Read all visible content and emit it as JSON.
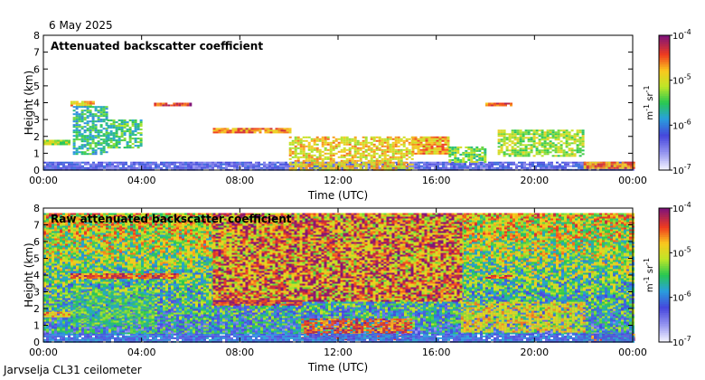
{
  "date": "6 May 2025",
  "footer": "Jarvselja CL31 ceilometer",
  "colorbar": {
    "tick_labels": [
      "10",
      "10",
      "10",
      "10"
    ],
    "tick_exponents": [
      "-4",
      "-5",
      "-6",
      "-7"
    ],
    "unit_parts": [
      "m",
      "-1",
      " sr",
      "-1"
    ]
  },
  "chart_data": [
    {
      "type": "heatmap",
      "title": "Attenuated backscatter coefficient",
      "xlabel": "Time (UTC)",
      "ylabel": "Height (km)",
      "x_ticks": [
        "00:00",
        "04:00",
        "08:00",
        "12:00",
        "16:00",
        "20:00",
        "00:00"
      ],
      "y_ticks": [
        "0",
        "1",
        "2",
        "3",
        "4",
        "5",
        "6",
        "7",
        "8"
      ],
      "xlim": [
        0,
        24
      ],
      "ylim": [
        0,
        8
      ],
      "color_scale": "log",
      "color_range": [
        1e-07,
        0.0001
      ],
      "features": [
        {
          "kind": "surface",
          "t0": 0,
          "t1": 24,
          "h0": 0,
          "h1": 0.5,
          "level": 0.12
        },
        {
          "kind": "layer",
          "t0": 0,
          "t1": 1.0,
          "h0": 1.5,
          "h1": 1.8,
          "level": 0.6
        },
        {
          "kind": "layer",
          "t0": 1.1,
          "t1": 2.0,
          "h0": 3.8,
          "h1": 4.1,
          "level": 0.72
        },
        {
          "kind": "plume",
          "t0": 1.2,
          "t1": 2.6,
          "h0": 1.0,
          "h1": 3.8,
          "level": 0.45
        },
        {
          "kind": "plume",
          "t0": 2.6,
          "t1": 4.0,
          "h0": 1.3,
          "h1": 3.0,
          "level": 0.5
        },
        {
          "kind": "layer",
          "t0": 4.5,
          "t1": 6.0,
          "h0": 3.8,
          "h1": 4.0,
          "level": 0.9
        },
        {
          "kind": "layer",
          "t0": 6.9,
          "t1": 10.0,
          "h0": 2.2,
          "h1": 2.5,
          "level": 0.8
        },
        {
          "kind": "cloud",
          "t0": 10.0,
          "t1": 15.0,
          "h0": 0.0,
          "h1": 2.0,
          "level": 0.7
        },
        {
          "kind": "layer",
          "t0": 15.0,
          "t1": 16.5,
          "h0": 1.0,
          "h1": 2.0,
          "level": 0.75
        },
        {
          "kind": "cloud",
          "t0": 16.5,
          "t1": 18.0,
          "h0": 0.5,
          "h1": 1.4,
          "level": 0.55
        },
        {
          "kind": "layer",
          "t0": 18.0,
          "t1": 19.0,
          "h0": 3.8,
          "h1": 4.0,
          "level": 0.85
        },
        {
          "kind": "cloud",
          "t0": 18.5,
          "t1": 22.0,
          "h0": 0.8,
          "h1": 2.4,
          "level": 0.6
        },
        {
          "kind": "layer",
          "t0": 22.0,
          "t1": 24.0,
          "h0": 0.1,
          "h1": 0.5,
          "level": 0.8
        }
      ]
    },
    {
      "type": "heatmap",
      "title": "Raw attenuated backscatter coefficient",
      "xlabel": "Time (UTC)",
      "ylabel": "Height (km)",
      "x_ticks": [
        "00:00",
        "04:00",
        "08:00",
        "12:00",
        "16:00",
        "20:00",
        "00:00"
      ],
      "y_ticks": [
        "0",
        "1",
        "2",
        "3",
        "4",
        "5",
        "6",
        "7",
        "8"
      ],
      "xlim": [
        0,
        24
      ],
      "ylim": [
        0,
        8
      ],
      "color_scale": "log",
      "color_range": [
        1e-07,
        0.0001
      ],
      "features": [
        {
          "kind": "noise",
          "t0": 0,
          "t1": 24,
          "h0": 0.5,
          "h1": 7.7,
          "level": 0.5
        },
        {
          "kind": "noise-high",
          "t0": 6.9,
          "t1": 17.0,
          "h0": 2.5,
          "h1": 7.7,
          "level": 0.8
        },
        {
          "kind": "layer",
          "t0": 0,
          "t1": 1.0,
          "h0": 1.5,
          "h1": 1.8,
          "level": 0.75
        },
        {
          "kind": "layer",
          "t0": 1.1,
          "t1": 5.5,
          "h0": 3.8,
          "h1": 4.1,
          "level": 0.85
        },
        {
          "kind": "plume",
          "t0": 1.2,
          "t1": 4.5,
          "h0": 1.0,
          "h1": 3.0,
          "level": 0.5
        },
        {
          "kind": "layer",
          "t0": 6.9,
          "t1": 10.5,
          "h0": 2.2,
          "h1": 2.5,
          "level": 0.9
        },
        {
          "kind": "cloud",
          "t0": 10.5,
          "t1": 15.0,
          "h0": 0.2,
          "h1": 1.4,
          "level": 0.85
        },
        {
          "kind": "layer",
          "t0": 18.0,
          "t1": 19.0,
          "h0": 3.8,
          "h1": 4.0,
          "level": 0.85
        },
        {
          "kind": "cloud",
          "t0": 17.0,
          "t1": 22.0,
          "h0": 0.6,
          "h1": 2.4,
          "level": 0.7
        },
        {
          "kind": "layer",
          "t0": 22.0,
          "t1": 24.0,
          "h0": 0.1,
          "h1": 0.5,
          "level": 0.85
        },
        {
          "kind": "surface",
          "t0": 0,
          "t1": 24,
          "h0": 0,
          "h1": 0.5,
          "level": 0.2
        }
      ]
    }
  ]
}
